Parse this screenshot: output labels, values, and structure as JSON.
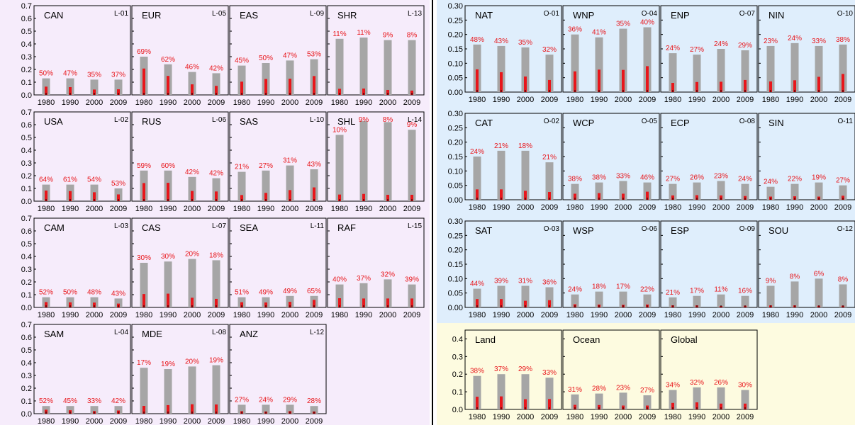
{
  "colors": {
    "land_bg": "#f6ecfb",
    "ocean_bg": "#dfeefc",
    "summary_bg": "#fdfbe0",
    "bar_total": "#a6a6a6",
    "bar_part": "#e8161b",
    "pct_text": "#e8161b",
    "divider": "#000000"
  },
  "chart_data": [
    {
      "type": "bar",
      "group": "land",
      "ylim": [
        0,
        0.7
      ],
      "yticks": [
        "0.0",
        "0.1",
        "0.2",
        "0.3",
        "0.4",
        "0.5",
        "0.6",
        "0.7"
      ],
      "categories": [
        "1980",
        "1990",
        "2000",
        "2009"
      ],
      "regions": [
        {
          "name": "CAN",
          "code": "L-01",
          "total": [
            0.13,
            0.13,
            0.12,
            0.12
          ],
          "part": [
            0.065,
            0.061,
            0.042,
            0.044
          ],
          "labels": [
            "50%",
            "47%",
            "35%",
            "37%"
          ]
        },
        {
          "name": "USA",
          "code": "L-02",
          "total": [
            0.13,
            0.13,
            0.13,
            0.1
          ],
          "part": [
            0.083,
            0.079,
            0.07,
            0.053
          ],
          "labels": [
            "64%",
            "61%",
            "54%",
            "53%"
          ]
        },
        {
          "name": "CAM",
          "code": "L-03",
          "total": [
            0.08,
            0.08,
            0.08,
            0.07
          ],
          "part": [
            0.042,
            0.04,
            0.038,
            0.03
          ],
          "labels": [
            "52%",
            "50%",
            "48%",
            "43%"
          ]
        },
        {
          "name": "SAM",
          "code": "L-04",
          "total": [
            0.06,
            0.06,
            0.06,
            0.06
          ],
          "part": [
            0.031,
            0.027,
            0.02,
            0.025
          ],
          "labels": [
            "52%",
            "45%",
            "33%",
            "42%"
          ]
        },
        {
          "name": "EUR",
          "code": "L-05",
          "total": [
            0.3,
            0.24,
            0.18,
            0.17
          ],
          "part": [
            0.207,
            0.149,
            0.083,
            0.071
          ],
          "labels": [
            "69%",
            "62%",
            "46%",
            "42%"
          ]
        },
        {
          "name": "RUS",
          "code": "L-06",
          "total": [
            0.24,
            0.24,
            0.19,
            0.18
          ],
          "part": [
            0.142,
            0.144,
            0.08,
            0.076
          ],
          "labels": [
            "59%",
            "60%",
            "42%",
            "42%"
          ]
        },
        {
          "name": "CAS",
          "code": "L-07",
          "total": [
            0.35,
            0.36,
            0.38,
            0.37
          ],
          "part": [
            0.105,
            0.108,
            0.076,
            0.067
          ],
          "labels": [
            "30%",
            "30%",
            "20%",
            "18%"
          ]
        },
        {
          "name": "MDE",
          "code": "L-08",
          "total": [
            0.36,
            0.35,
            0.37,
            0.38
          ],
          "part": [
            0.061,
            0.067,
            0.074,
            0.072
          ],
          "labels": [
            "17%",
            "19%",
            "20%",
            "19%"
          ]
        },
        {
          "name": "EAS",
          "code": "L-09",
          "total": [
            0.23,
            0.25,
            0.27,
            0.28
          ],
          "part": [
            0.104,
            0.125,
            0.127,
            0.148
          ],
          "labels": [
            "45%",
            "50%",
            "47%",
            "53%"
          ]
        },
        {
          "name": "SAS",
          "code": "L-10",
          "total": [
            0.23,
            0.24,
            0.28,
            0.25
          ],
          "part": [
            0.048,
            0.065,
            0.087,
            0.108
          ],
          "labels": [
            "21%",
            "27%",
            "31%",
            "43%"
          ]
        },
        {
          "name": "SEA",
          "code": "L-11",
          "total": [
            0.08,
            0.08,
            0.09,
            0.09
          ],
          "part": [
            0.041,
            0.039,
            0.044,
            0.059
          ],
          "labels": [
            "51%",
            "49%",
            "49%",
            "65%"
          ]
        },
        {
          "name": "ANZ",
          "code": "L-12",
          "total": [
            0.07,
            0.07,
            0.07,
            0.06
          ],
          "part": [
            0.019,
            0.017,
            0.02,
            0.017
          ],
          "labels": [
            "27%",
            "24%",
            "29%",
            "28%"
          ]
        },
        {
          "name": "SHR",
          "code": "L-13",
          "total": [
            0.44,
            0.45,
            0.43,
            0.43
          ],
          "part": [
            0.048,
            0.05,
            0.039,
            0.034
          ],
          "labels": [
            "11%",
            "11%",
            "9%",
            "8%"
          ]
        },
        {
          "name": "SHL",
          "code": "L-14",
          "total": [
            0.52,
            0.63,
            0.62,
            0.56
          ],
          "part": [
            0.052,
            0.057,
            0.05,
            0.05
          ],
          "labels": [
            "10%",
            "9%",
            "8%",
            "9%"
          ]
        },
        {
          "name": "RAF",
          "code": "L-15",
          "total": [
            0.18,
            0.19,
            0.22,
            0.18
          ],
          "part": [
            0.072,
            0.07,
            0.07,
            0.07
          ],
          "labels": [
            "40%",
            "37%",
            "32%",
            "39%"
          ]
        }
      ]
    },
    {
      "type": "bar",
      "group": "ocean",
      "ylim": [
        0,
        0.3
      ],
      "yticks": [
        "0.00",
        "0.05",
        "0.10",
        "0.15",
        "0.20",
        "0.25",
        "0.30"
      ],
      "categories": [
        "1980",
        "1990",
        "2000",
        "2009"
      ],
      "regions": [
        {
          "name": "NAT",
          "code": "O-01",
          "total": [
            0.165,
            0.16,
            0.155,
            0.13
          ],
          "part": [
            0.079,
            0.069,
            0.054,
            0.042
          ],
          "labels": [
            "48%",
            "43%",
            "35%",
            "32%"
          ]
        },
        {
          "name": "CAT",
          "code": "O-02",
          "total": [
            0.15,
            0.17,
            0.17,
            0.13
          ],
          "part": [
            0.036,
            0.036,
            0.031,
            0.027
          ],
          "labels": [
            "24%",
            "21%",
            "18%",
            "21%"
          ]
        },
        {
          "name": "SAT",
          "code": "O-03",
          "total": [
            0.065,
            0.075,
            0.075,
            0.07
          ],
          "part": [
            0.029,
            0.029,
            0.023,
            0.025
          ],
          "labels": [
            "44%",
            "39%",
            "31%",
            "36%"
          ]
        },
        {
          "name": "WNP",
          "code": "O-04",
          "total": [
            0.2,
            0.19,
            0.22,
            0.225
          ],
          "part": [
            0.072,
            0.078,
            0.077,
            0.09
          ],
          "labels": [
            "36%",
            "41%",
            "35%",
            "40%"
          ]
        },
        {
          "name": "WCP",
          "code": "O-05",
          "total": [
            0.055,
            0.06,
            0.065,
            0.06
          ],
          "part": [
            0.021,
            0.023,
            0.021,
            0.028
          ],
          "labels": [
            "38%",
            "38%",
            "33%",
            "46%"
          ]
        },
        {
          "name": "WSP",
          "code": "O-06",
          "total": [
            0.045,
            0.055,
            0.055,
            0.045
          ],
          "part": [
            0.011,
            0.01,
            0.009,
            0.01
          ],
          "labels": [
            "24%",
            "18%",
            "17%",
            "22%"
          ]
        },
        {
          "name": "ENP",
          "code": "O-07",
          "total": [
            0.135,
            0.13,
            0.15,
            0.145
          ],
          "part": [
            0.032,
            0.035,
            0.036,
            0.042
          ],
          "labels": [
            "24%",
            "27%",
            "24%",
            "29%"
          ]
        },
        {
          "name": "ECP",
          "code": "O-08",
          "total": [
            0.055,
            0.06,
            0.065,
            0.055
          ],
          "part": [
            0.015,
            0.016,
            0.015,
            0.013
          ],
          "labels": [
            "27%",
            "26%",
            "23%",
            "24%"
          ]
        },
        {
          "name": "ESP",
          "code": "O-09",
          "total": [
            0.035,
            0.04,
            0.045,
            0.04
          ],
          "part": [
            0.007,
            0.007,
            0.005,
            0.006
          ],
          "labels": [
            "21%",
            "17%",
            "11%",
            "16%"
          ]
        },
        {
          "name": "NIN",
          "code": "O-10",
          "total": [
            0.16,
            0.17,
            0.16,
            0.165
          ],
          "part": [
            0.037,
            0.041,
            0.053,
            0.063
          ],
          "labels": [
            "23%",
            "24%",
            "33%",
            "38%"
          ]
        },
        {
          "name": "SIN",
          "code": "O-11",
          "total": [
            0.045,
            0.055,
            0.06,
            0.05
          ],
          "part": [
            0.011,
            0.012,
            0.011,
            0.014
          ],
          "labels": [
            "24%",
            "22%",
            "19%",
            "27%"
          ]
        },
        {
          "name": "SOU",
          "code": "O-12",
          "total": [
            0.075,
            0.09,
            0.1,
            0.08
          ],
          "part": [
            0.007,
            0.007,
            0.006,
            0.006
          ],
          "labels": [
            "9%",
            "8%",
            "6%",
            "8%"
          ]
        }
      ]
    },
    {
      "type": "bar",
      "group": "summary",
      "ylim": [
        0,
        0.45
      ],
      "yticks": [
        "0.0",
        "0.1",
        "0.2",
        "0.3",
        "0.4"
      ],
      "categories": [
        "1980",
        "1990",
        "2000",
        "2009"
      ],
      "regions": [
        {
          "name": "Land",
          "code": "",
          "total": [
            0.19,
            0.2,
            0.2,
            0.18
          ],
          "part": [
            0.072,
            0.074,
            0.058,
            0.059
          ],
          "labels": [
            "38%",
            "37%",
            "29%",
            "33%"
          ]
        },
        {
          "name": "Ocean",
          "code": "",
          "total": [
            0.085,
            0.09,
            0.095,
            0.08
          ],
          "part": [
            0.026,
            0.025,
            0.022,
            0.022
          ],
          "labels": [
            "31%",
            "28%",
            "23%",
            "27%"
          ]
        },
        {
          "name": "Global",
          "code": "",
          "total": [
            0.11,
            0.125,
            0.125,
            0.11
          ],
          "part": [
            0.037,
            0.04,
            0.033,
            0.033
          ],
          "labels": [
            "34%",
            "32%",
            "26%",
            "30%"
          ]
        }
      ]
    }
  ]
}
